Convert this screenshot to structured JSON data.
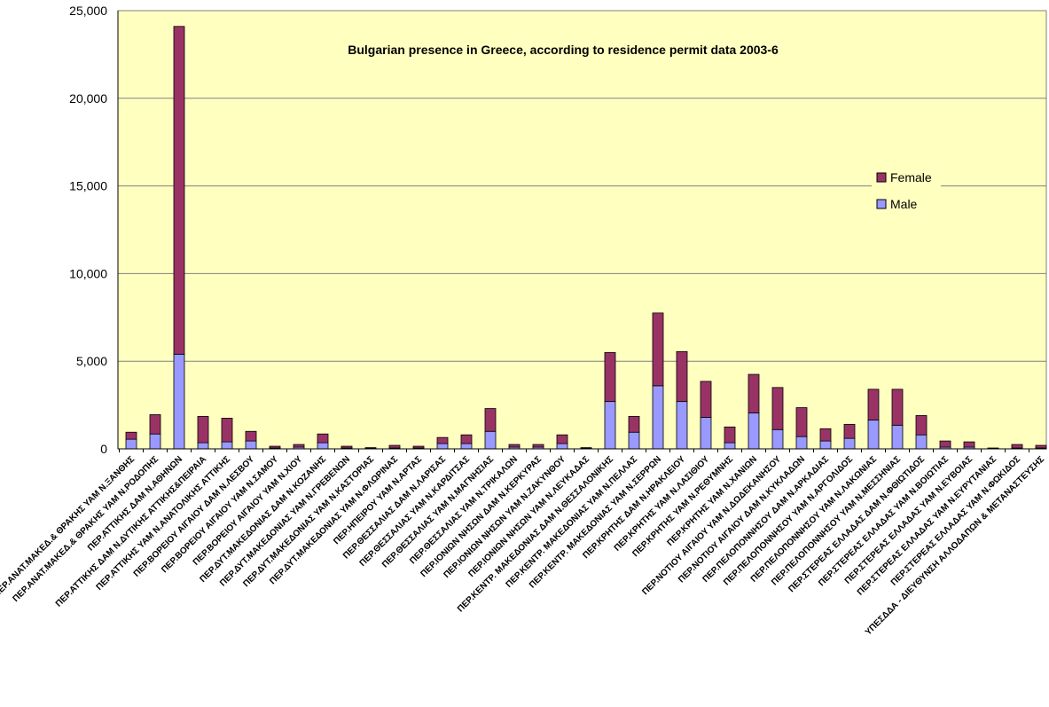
{
  "chart_data": {
    "type": "bar",
    "stacked": true,
    "title": "Bulgarian presence in Greece, according to residence permit data 2003-6",
    "xlabel": "",
    "ylabel": "",
    "ylim": [
      0,
      25000
    ],
    "yticks": [
      "0",
      "5,000",
      "10,000",
      "15,000",
      "20,000",
      "25,000"
    ],
    "ytick_values": [
      0,
      5000,
      10000,
      15000,
      20000,
      25000
    ],
    "grid": true,
    "legend_position": "right",
    "colors": {
      "plot_background": "#FFFFC0",
      "male": "#9999FF",
      "female": "#993366",
      "grid": "#808080"
    },
    "categories": [
      "ΠΕΡ.ΑΝΑΤ.ΜΑΚΕΔ.& ΘΡΑΚΗΣ ΥΑΜ Ν.ΞΑΝΘΗΣ",
      "ΠΕΡ.ΑΝΑΤ.ΜΑΚΕΔ.& ΘΡΑΚΗΣ ΥΑΜ Ν.ΡΟΔΟΠΗΣ",
      "ΠΕΡ.ΑΤΤΙΚΗΣ ΔΑΜ Ν.ΑΘΗΝΩΝ",
      "ΠΕΡ.ΑΤΤΙΚΗΣ ΔΑΜ Ν.ΔΥΤΙΚΗΣ ΑΤΤΙΚΗΣ&ΠΕΙΡΑΙΑ",
      "ΠΕΡ.ΑΤΤΙΚΗΣ ΥΑΜ Ν.ΑΝΑΤΟΛΙΚΗΣ ΑΤΤΙΚΗΣ",
      "ΠΕΡ.ΒΟΡΕΙΟΥ ΑΙΓΑΙΟΥ ΔΑΜ Ν.ΛΕΣΒΟΥ",
      "ΠΕΡ.ΒΟΡΕΙΟΥ ΑΙΓΑΙΟΥ ΥΑΜ Ν.ΣΑΜΟΥ",
      "ΠΕΡ.ΒΟΡΕΙΟΥ ΑΙΓΑΙΟΥ ΥΑΜ Ν.ΧΙΟΥ",
      "ΠΕΡ.ΔΥΤ.ΜΑΚΕΔΟΝΙΑΣ ΔΑΜ Ν.ΚΟΖΑΝΗΣ",
      "ΠΕΡ.ΔΥΤ.ΜΑΚΕΔΟΝΙΑΣ ΥΑΜ Ν.ΓΡΕΒΕΝΩΝ",
      "ΠΕΡ.ΔΥΤ.ΜΑΚΕΔΟΝΙΑΣ ΥΑΜ Ν.ΚΑΣΤΟΡΙΑΣ",
      "ΠΕΡ.ΔΥΤ.ΜΑΚΕΔΟΝΙΑΣ ΥΑΜ Ν.ΦΛΩΡΙΝΑΣ",
      "ΠΕΡ.ΗΠΕΙΡΟΥ ΥΑΜ Ν.ΑΡΤΑΣ",
      "ΠΕΡ.ΘΕΣΣΑΛΙΑΣ ΔΑΜ Ν.ΛΑΡΙΣΑΣ",
      "ΠΕΡ.ΘΕΣΣΑΛΙΑΣ ΥΑΜ Ν.ΚΑΡΔΙΤΣΑΣ",
      "ΠΕΡ.ΘΕΣΣΑΛΙΑΣ ΥΑΜ Ν.ΜΑΓΝΗΣΙΑΣ",
      "ΠΕΡ.ΘΕΣΣΑΛΙΑΣ ΥΑΜ Ν.ΤΡΙΚΑΛΩΝ",
      "ΠΕΡ.ΙΟΝΙΩΝ ΝΗΣΩΝ ΔΑΜ Ν.ΚΕΡΚΥΡΑΣ",
      "ΠΕΡ.ΙΟΝΙΩΝ ΝΗΣΩΝ ΥΑΜ Ν.ΖΑΚΥΝΘΟΥ",
      "ΠΕΡ.ΙΟΝΙΩΝ ΝΗΣΩΝ ΥΑΜ Ν.ΛΕΥΚΑΔΑΣ",
      "ΠΕΡ.ΚΕΝΤΡ. ΜΑΚΕΔΟΝΙΑΣ ΔΑΜ Ν.ΘΕΣΣΑΛΟΝΙΚΗΣ",
      "ΠΕΡ.ΚΕΝΤΡ. ΜΑΚΕΔΟΝΙΑΣ ΥΑΜ Ν.ΠΕΛΛΑΣ",
      "ΠΕΡ.ΚΕΝΤΡ. ΜΑΚΕΔΟΝΙΑΣ ΥΑΜ Ν.ΣΕΡΡΩΝ",
      "ΠΕΡ.ΚΡΗΤΗΣ ΔΑΜ Ν.ΗΡΑΚΛΕΙΟΥ",
      "ΠΕΡ.ΚΡΗΤΗΣ ΥΑΜ Ν.ΛΑΣΙΘΙΟΥ",
      "ΠΕΡ.ΚΡΗΤΗΣ ΥΑΜ Ν.ΡΕΘΥΜΝΗΣ",
      "ΠΕΡ.ΚΡΗΤΗΣ ΥΑΜ Ν.ΧΑΝΙΩΝ",
      "ΠΕΡ.ΝΟΤΙΟΥ ΑΙΓΑΙΟΥ ΥΑΜ Ν.ΔΩΔΕΚΑΝΗΣΟΥ",
      "ΠΕΡ.ΝΟΤΙΟΥ ΑΙΓΑΙΟΥ ΔΑΜ Ν.ΚΥΚΛΑΔΩΝ",
      "ΠΕΡ.ΠΕΛΟΠΟΝΝΗΣΟΥ ΔΑΜ Ν.ΑΡΚΑΔΙΑΣ",
      "ΠΕΡ.ΠΕΛΟΠΟΝΝΗΣΟΥ ΥΑΜ Ν.ΑΡΓΟΛΙΔΟΣ",
      "ΠΕΡ.ΠΕΛΟΠΟΝΝΗΣΟΥ ΥΑΜ Ν.ΛΑΚΩΝΙΑΣ",
      "ΠΕΡ.ΠΕΛΟΠΟΝΝΗΣΟΥ ΥΑΜ Ν.ΜΕΣΣΗΝΙΑΣ",
      "ΠΕΡ.ΣΤΕΡΕΑΣ ΕΛΛΑΔΑΣ ΔΑΜ Ν.ΦΘΙΩΤΙΔΟΣ",
      "ΠΕΡ.ΣΤΕΡΕΑΣ ΕΛΛΑΔΑΣ ΥΑΜ Ν.ΒΟΙΩΤΙΑΣ",
      "ΠΕΡ.ΣΤΕΡΕΑΣ ΕΛΛΑΔΑΣ ΥΑΜ Ν.ΕΥΒΟΙΑΣ",
      "ΠΕΡ.ΣΤΕΡΕΑΣ ΕΛΛΑΔΑΣ ΥΑΜ Ν.ΕΥΡΥΤΑΝΙΑΣ",
      "ΠΕΡ.ΣΤΕΡΕΑΣ ΕΛΛΑΔΑΣ ΥΑΜ Ν.ΦΩΚΙΔΟΣ",
      "ΥΠΕΣΔΔΑ - ΔΙΕΥΘΥΝΣΗ ΑΛΛΟΔΑΠΩΝ & ΜΕΤΑΝΑΣΤΕΥΣΗΣ"
    ],
    "series": [
      {
        "name": "Male",
        "values": [
          550,
          850,
          5400,
          350,
          400,
          450,
          50,
          100,
          350,
          50,
          30,
          50,
          50,
          300,
          300,
          1000,
          100,
          100,
          300,
          30,
          2700,
          950,
          3600,
          2700,
          1800,
          350,
          2050,
          1100,
          700,
          450,
          600,
          1650,
          1350,
          800,
          100,
          100,
          20,
          50,
          50
        ]
      },
      {
        "name": "Female",
        "values": [
          400,
          1100,
          18700,
          1500,
          1350,
          550,
          100,
          150,
          500,
          100,
          40,
          150,
          100,
          350,
          500,
          1300,
          150,
          150,
          500,
          40,
          2800,
          900,
          4150,
          2850,
          2050,
          900,
          2200,
          2400,
          1650,
          700,
          800,
          1750,
          2050,
          1100,
          350,
          300,
          30,
          200,
          150
        ]
      }
    ]
  }
}
